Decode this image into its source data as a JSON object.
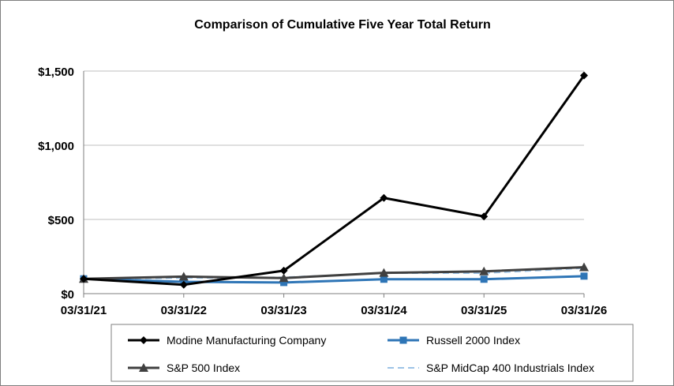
{
  "chart_data": {
    "type": "line",
    "title": "Comparison of Cumulative Five Year Total Return",
    "xlabel": "",
    "ylabel": "",
    "x": [
      "03/31/21",
      "03/31/22",
      "03/31/23",
      "03/31/24",
      "03/31/25",
      "03/31/26"
    ],
    "y_ticks": [
      {
        "value": 0,
        "label": "$0"
      },
      {
        "value": 500,
        "label": "$500"
      },
      {
        "value": 1000,
        "label": "$1,000"
      },
      {
        "value": 1500,
        "label": "$1,500"
      }
    ],
    "ylim": [
      0,
      1500
    ],
    "grid": "horizontal",
    "legend_position": "bottom",
    "series": [
      {
        "name": "Modine Manufacturing Company",
        "values": [
          100,
          60,
          155,
          645,
          520,
          1470
        ],
        "color": "#000000",
        "marker": "diamond",
        "dash": "solid",
        "width": 3
      },
      {
        "name": "Russell 2000 Index",
        "values": [
          100,
          80,
          75,
          97,
          97,
          118
        ],
        "color": "#2e75b6",
        "marker": "square",
        "dash": "solid",
        "width": 3
      },
      {
        "name": "S&P 500 Index",
        "values": [
          100,
          115,
          105,
          140,
          150,
          178
        ],
        "color": "#404040",
        "marker": "triangle",
        "dash": "solid",
        "width": 3
      },
      {
        "name": "S&P MidCap 400 Industrials Index",
        "values": [
          100,
          105,
          110,
          138,
          138,
          172
        ],
        "color": "#9dc3e6",
        "marker": "none",
        "dash": "8,5",
        "width": 2
      }
    ]
  }
}
